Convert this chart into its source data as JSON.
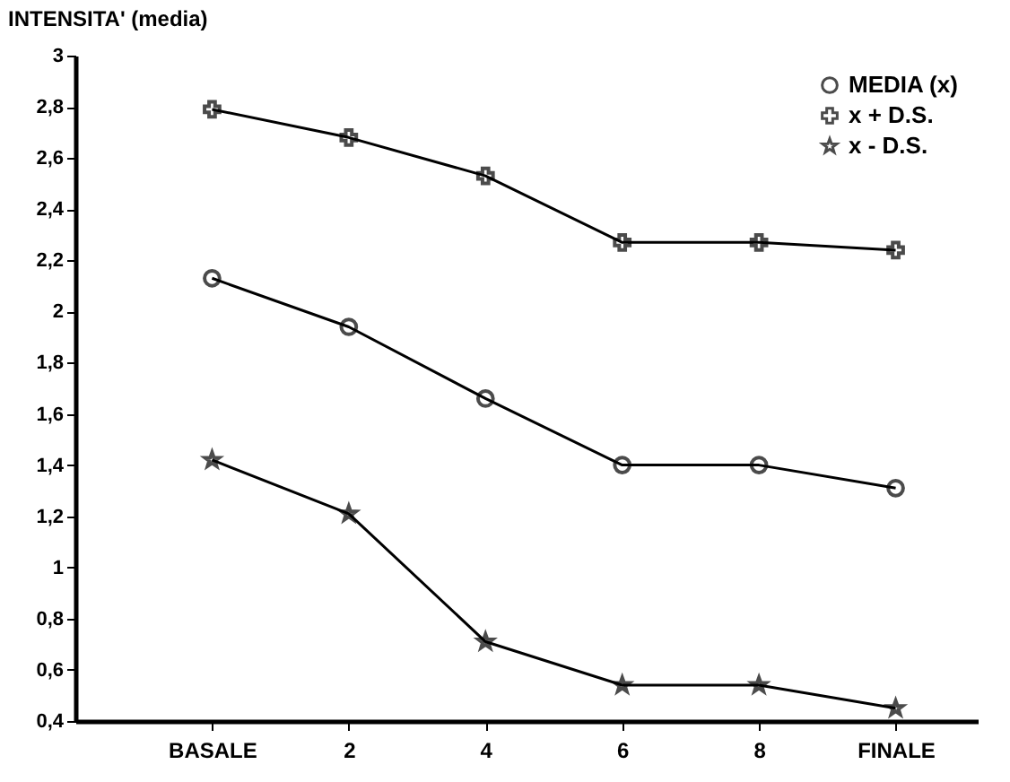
{
  "chart_data": {
    "type": "line",
    "ylabel": "INTENSITA' (media)",
    "categories": [
      "BASALE",
      "2",
      "4",
      "6",
      "8",
      "FINALE"
    ],
    "series": [
      {
        "name": "MEDIA (x)",
        "color": "#000000",
        "marker": "circle",
        "values": [
          2.13,
          1.94,
          1.66,
          1.4,
          1.4,
          1.31
        ]
      },
      {
        "name": "x + D.S.",
        "color": "#000000",
        "marker": "cross",
        "values": [
          2.79,
          2.68,
          2.53,
          2.27,
          2.27,
          2.24
        ]
      },
      {
        "name": "x - D.S.",
        "color": "#000000",
        "marker": "star",
        "values": [
          1.42,
          1.21,
          0.71,
          0.54,
          0.54,
          0.45
        ]
      }
    ],
    "ylim": [
      0.4,
      3
    ],
    "yticks": [
      {
        "value": 0.4,
        "label": "0,4"
      },
      {
        "value": 0.6,
        "label": "0,6"
      },
      {
        "value": 0.8,
        "label": "0,8"
      },
      1,
      {
        "value": 1.2,
        "label": "1,2"
      },
      {
        "value": 1.4,
        "label": "1,4"
      },
      {
        "value": 1.6,
        "label": "1,6"
      },
      {
        "value": 1.8,
        "label": "1,8"
      },
      2,
      {
        "value": 2.2,
        "label": "2,2"
      },
      {
        "value": 2.4,
        "label": "2,4"
      },
      {
        "value": 2.6,
        "label": "2,6"
      },
      {
        "value": 2.8,
        "label": "2,8"
      },
      3
    ],
    "grid": false,
    "legend": "top right",
    "line_style": "solid"
  }
}
